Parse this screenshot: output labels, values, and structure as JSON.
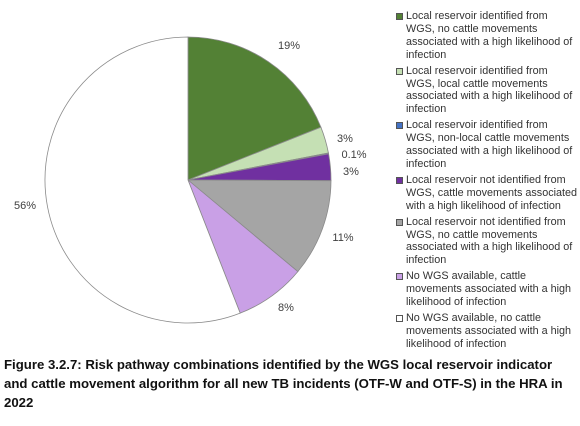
{
  "chart_data": {
    "type": "pie",
    "slices": [
      {
        "label": "Local reservoir identified from WGS, no cattle movements associated with a high likelihood of infection",
        "value": 19,
        "value_label": "19%",
        "color": "#538135"
      },
      {
        "label": "Local reservoir identified from WGS, local cattle movements associated with a high likelihood of infection",
        "value": 3,
        "value_label": "3%",
        "color": "#c5e0b4"
      },
      {
        "label": "Local reservoir identified from WGS, non-local cattle movements associated with a high likelihood of infection",
        "value": 0.1,
        "value_label": "0.1%",
        "color": "#4472c4"
      },
      {
        "label": "Local reservoir not identified from WGS, cattle movements associated with a high likelihood of infection",
        "value": 3,
        "value_label": "3%",
        "color": "#7030a0"
      },
      {
        "label": "Local reservoir not identified from WGS, no cattle movements associated with a high likelihood of infection",
        "value": 11,
        "value_label": "11%",
        "color": "#a5a5a5"
      },
      {
        "label": "No WGS available, cattle movements associated with a high likelihood of infection",
        "value": 8,
        "value_label": "8%",
        "color": "#c9a0e6"
      },
      {
        "label": "No WGS available, no cattle movements associated with a high likelihood of infection",
        "value": 56,
        "value_label": "56%",
        "color": "#ffffff"
      }
    ],
    "legend_position": "right"
  },
  "caption": "Figure 3.2.7: Risk pathway combinations identified by the WGS local reservoir indicator and cattle movement algorithm for all new TB incidents (OTF-W and OTF-S) in the HRA in 2022"
}
